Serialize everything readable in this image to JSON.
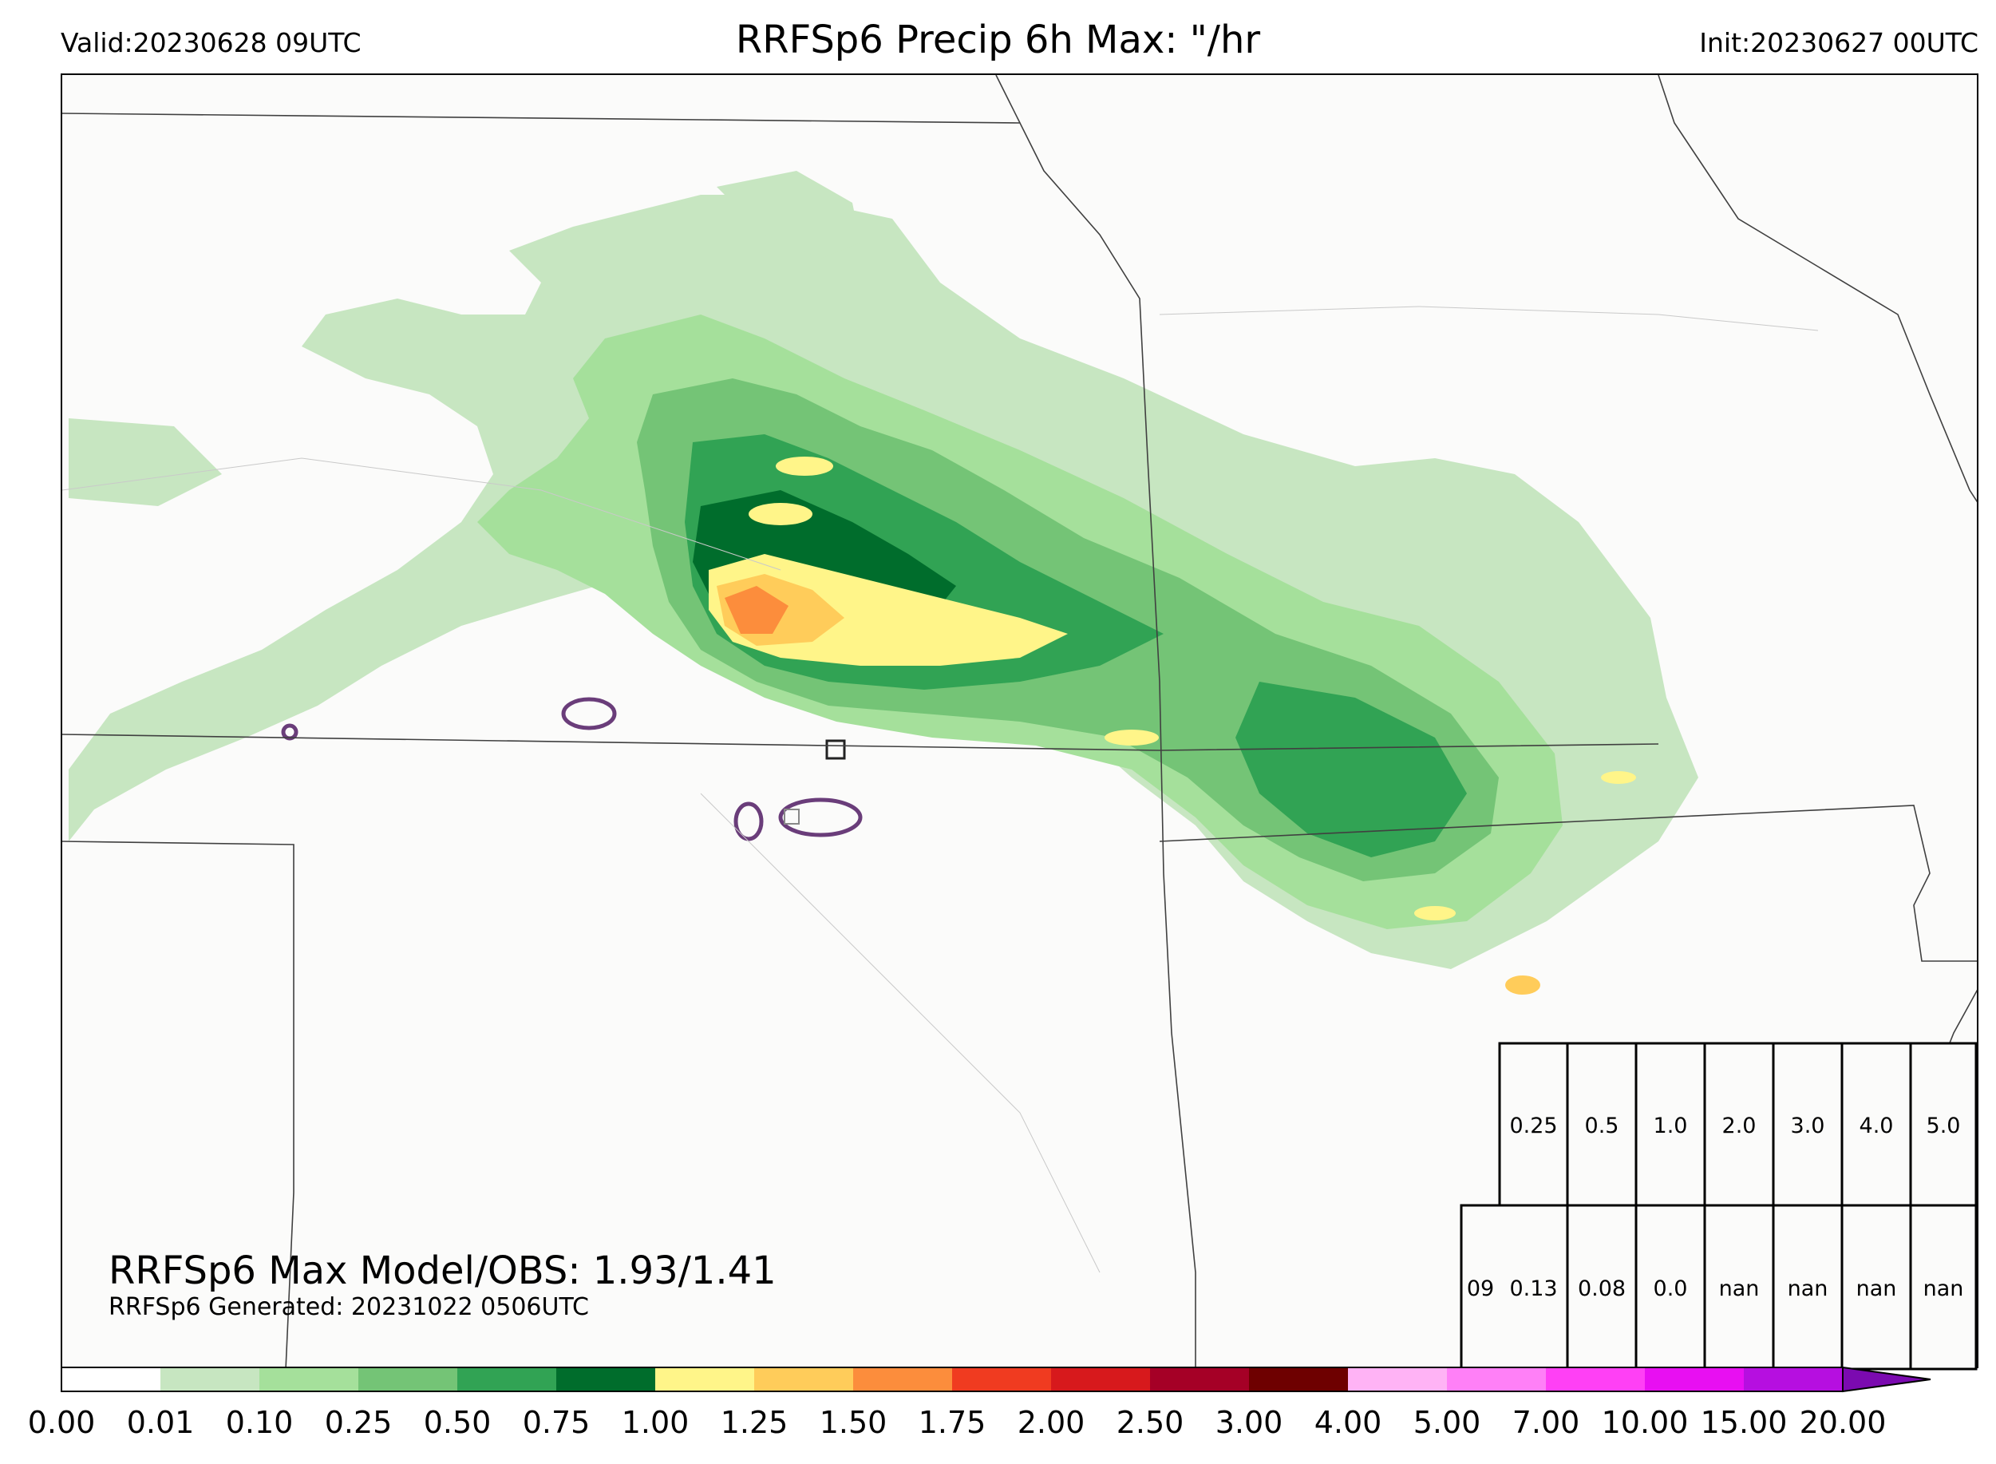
{
  "header": {
    "valid": "Valid:20230628 09UTC",
    "title": "RRFSp6 Precip 6h Max: \"/hr",
    "init": "Init:20230627 00UTC"
  },
  "annotations": {
    "max_model_obs": "RRFSp6 Max Model/OBS: 1.93/1.41",
    "generated": "RRFSp6 Generated: 20231022 0506UTC"
  },
  "stats_table": {
    "thresholds": [
      "0.25",
      "0.5",
      "1.0",
      "2.0",
      "3.0",
      "4.0",
      "5.0"
    ],
    "row_label": "09",
    "row_values": [
      "0.13",
      "0.08",
      "0.0",
      "nan",
      "nan",
      "nan",
      "nan"
    ]
  },
  "colorbar": {
    "tick_labels": [
      "0.00",
      "0.01",
      "0.10",
      "0.25",
      "0.50",
      "0.75",
      "1.00",
      "1.25",
      "1.50",
      "1.75",
      "2.00",
      "2.50",
      "3.00",
      "4.00",
      "5.00",
      "7.00",
      "10.00",
      "15.00",
      "20.00"
    ],
    "colors": [
      "#ffffff",
      "#c7e6c1",
      "#a5e09b",
      "#74c476",
      "#31a354",
      "#006d2c",
      "#fff589",
      "#ffcc5a",
      "#fc8d3c",
      "#f03b20",
      "#d7191c",
      "#a50026",
      "#6e0000",
      "#ffb3f5",
      "#ff80f7",
      "#ff40f5",
      "#e80ff2",
      "#b60fe0",
      "#7b0ab0"
    ]
  },
  "map_colors": {
    "background": "#fbfbfa",
    "border_line": "#404040",
    "obs_contour": "#6a3d7a"
  }
}
